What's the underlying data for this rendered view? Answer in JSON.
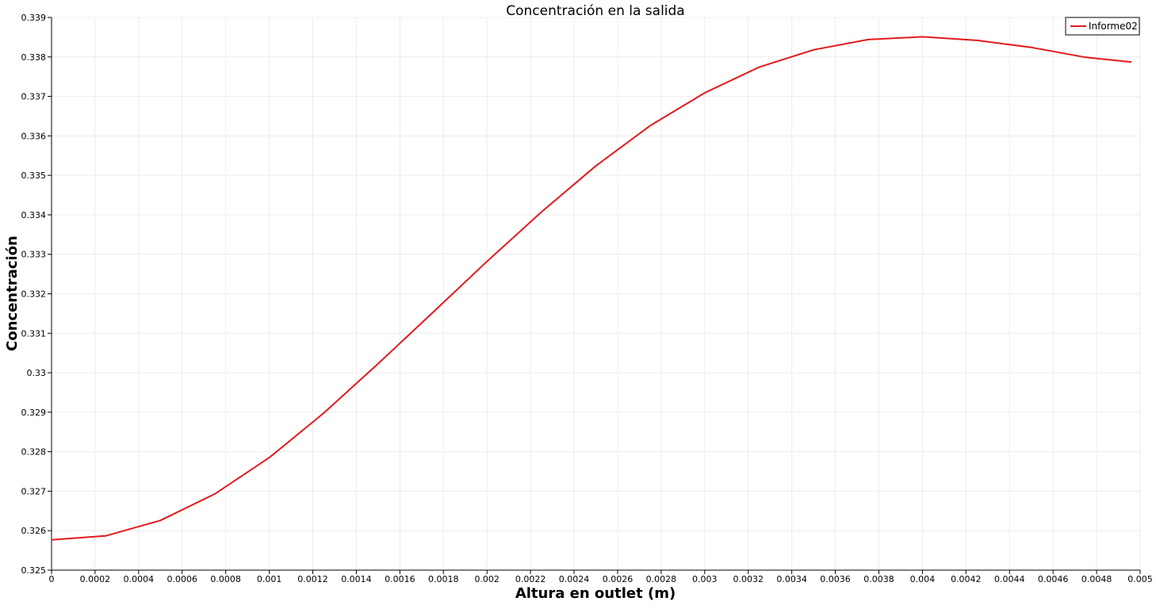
{
  "chart_data": {
    "type": "line",
    "title": "Concentración en la salida",
    "xlabel": "Altura en outlet (m)",
    "ylabel": "Concentración",
    "xlim": [
      0,
      0.005
    ],
    "ylim": [
      0.325,
      0.339
    ],
    "x_ticks": [
      0,
      0.0002,
      0.0004,
      0.0006,
      0.0008,
      0.001,
      0.0012,
      0.0014,
      0.0016,
      0.0018,
      0.002,
      0.0022,
      0.0024,
      0.0026,
      0.0028,
      0.003,
      0.0032,
      0.0034,
      0.0036,
      0.0038,
      0.004,
      0.0042,
      0.0044,
      0.0046,
      0.0048,
      0.005
    ],
    "x_tick_labels": [
      "0",
      "0.0002",
      "0.0004",
      "0.0006",
      "0.0008",
      "0.001",
      "0.0012",
      "0.0014",
      "0.0016",
      "0.0018",
      "0.002",
      "0.0022",
      "0.0024",
      "0.0026",
      "0.0028",
      "0.003",
      "0.0032",
      "0.0034",
      "0.0036",
      "0.0038",
      "0.004",
      "0.0042",
      "0.0044",
      "0.0046",
      "0.0048",
      "0.005"
    ],
    "y_ticks": [
      0.325,
      0.326,
      0.327,
      0.328,
      0.329,
      0.33,
      0.331,
      0.332,
      0.333,
      0.334,
      0.335,
      0.336,
      0.337,
      0.338,
      0.339
    ],
    "y_tick_labels": [
      "0.325",
      "0.326",
      "0.327",
      "0.328",
      "0.329",
      "0.33",
      "0.331",
      "0.332",
      "0.333",
      "0.334",
      "0.335",
      "0.336",
      "0.337",
      "0.338",
      "0.339"
    ],
    "grid": true,
    "legend_position": "top-right",
    "series": [
      {
        "name": "Informe02",
        "color": "#e31a1c",
        "x": [
          0,
          0.00025,
          0.0005,
          0.00075,
          0.001,
          0.00125,
          0.0015,
          0.00175,
          0.002,
          0.00225,
          0.0025,
          0.00275,
          0.003,
          0.00325,
          0.0035,
          0.00375,
          0.004,
          0.00425,
          0.0045,
          0.00475,
          0.00496
        ],
        "y": [
          0.32577,
          0.32587,
          0.32626,
          0.32693,
          0.32785,
          0.32898,
          0.33023,
          0.33152,
          0.33282,
          0.33407,
          0.33524,
          0.33626,
          0.33709,
          0.33774,
          0.33818,
          0.33844,
          0.33851,
          0.33842,
          0.33824,
          0.33799,
          0.33787
        ]
      }
    ]
  }
}
